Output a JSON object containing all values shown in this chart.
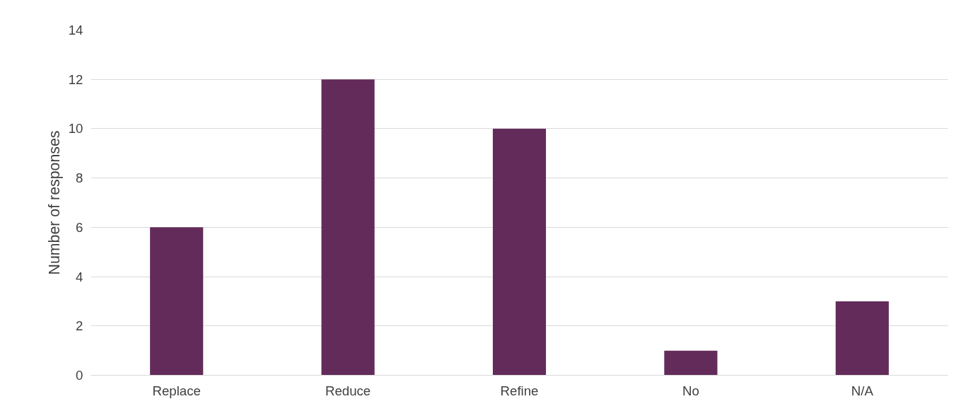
{
  "chart_data": {
    "type": "bar",
    "ylabel": "Number of responses",
    "categories": [
      "Replace",
      "Reduce",
      "Refine",
      "No",
      "N/A"
    ],
    "values": [
      6,
      12,
      10,
      1,
      3
    ],
    "color": "#632b5a",
    "ylim": [
      0,
      14
    ],
    "yticks": [
      0,
      2,
      4,
      6,
      8,
      10,
      12,
      14
    ],
    "grid": "y"
  }
}
